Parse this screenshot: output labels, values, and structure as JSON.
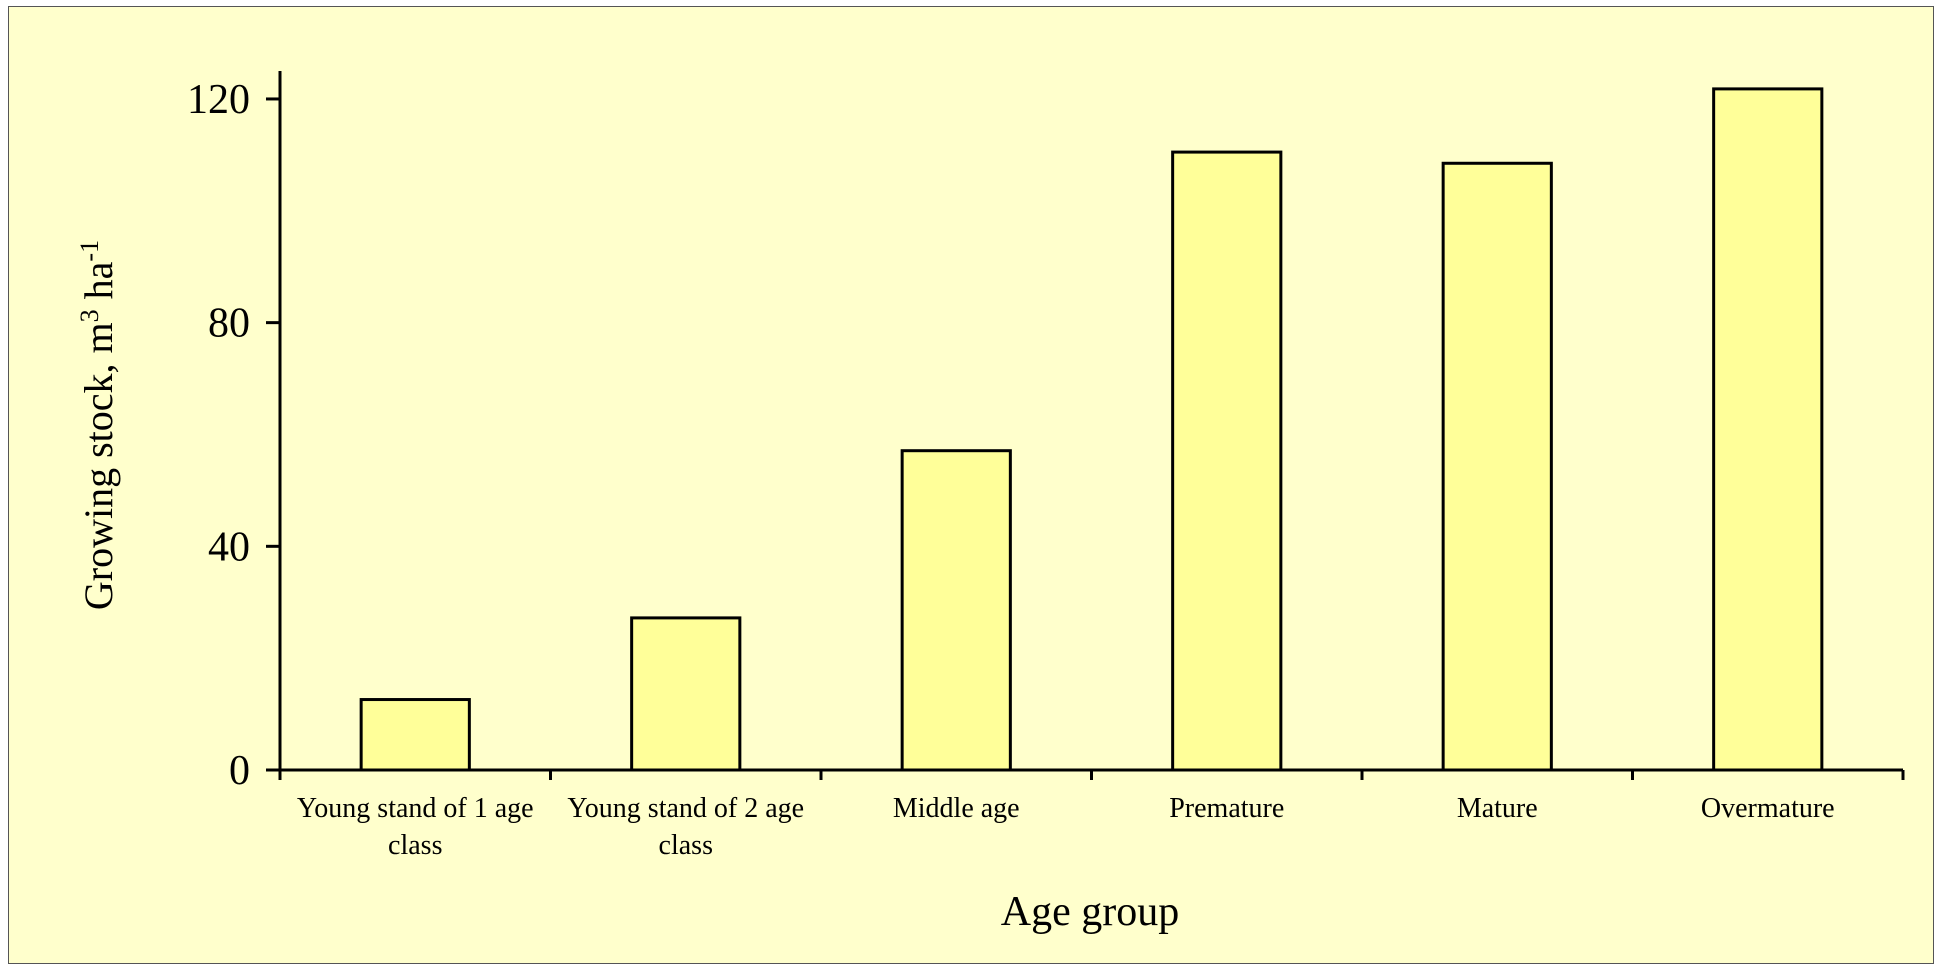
{
  "chart_data": {
    "type": "bar",
    "x_label": "Age group",
    "y_label_parts": [
      "Growing stock, m",
      "3",
      " ha",
      "-1"
    ],
    "categories": [
      "Young stand of 1 age class",
      "Young stand of 2 age class",
      "Middle age",
      "Premature",
      "Mature",
      "Overmature"
    ],
    "values": [
      12.6,
      27.2,
      57.1,
      110.5,
      108.5,
      121.8
    ],
    "color": "#ffff99",
    "stroke": "#000000",
    "background": "#ffffcc",
    "ylim": [
      0,
      125
    ],
    "yticks": [
      0,
      40,
      80,
      120
    ],
    "grid": false
  }
}
